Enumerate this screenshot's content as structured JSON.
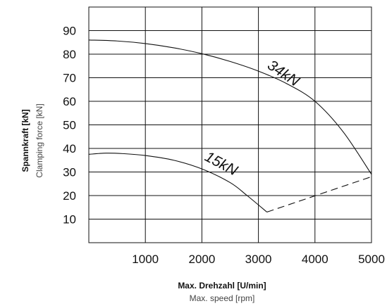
{
  "chart_data": {
    "type": "line",
    "xlabel": "Max. Drehzahl [U/min]",
    "xlabel_secondary": "Max. speed [rpm]",
    "ylabel": "Spannkraft [kN]",
    "ylabel_secondary": "Clamping force [kN]",
    "xlim": [
      0,
      5000
    ],
    "ylim": [
      0,
      100
    ],
    "x_ticks": [
      1000,
      2000,
      3000,
      4000,
      5000
    ],
    "y_ticks": [
      10,
      20,
      30,
      40,
      50,
      60,
      70,
      80,
      90
    ],
    "grid": true,
    "series": [
      {
        "name": "34kN",
        "style": "solid",
        "x": [
          0,
          500,
          1000,
          1500,
          2000,
          2500,
          3000,
          3500,
          4000,
          4500,
          5000
        ],
        "y": [
          86,
          85.6,
          84.5,
          82.7,
          80.2,
          76.9,
          72.8,
          67.5,
          60,
          47,
          29
        ]
      },
      {
        "name": "15kN",
        "style": "solid",
        "x": [
          0,
          300,
          600,
          1000,
          1500,
          2000,
          2500,
          2800,
          3150
        ],
        "y": [
          37.5,
          38,
          37.8,
          37,
          35,
          31.3,
          25.5,
          20,
          13
        ]
      },
      {
        "name": "",
        "style": "dashed",
        "x": [
          3150,
          5000
        ],
        "y": [
          13,
          28
        ]
      }
    ]
  }
}
